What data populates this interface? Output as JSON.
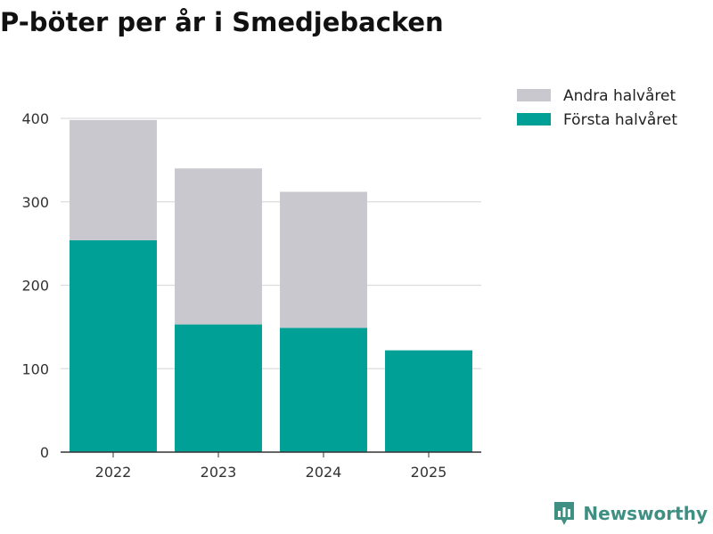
{
  "chart_data": {
    "type": "bar",
    "stacked": true,
    "title": "P-böter per år i Smedjebacken",
    "categories": [
      "2022",
      "2023",
      "2024",
      "2025"
    ],
    "series": [
      {
        "name": "Första halvåret",
        "color": "#00a096",
        "values": [
          254,
          153,
          149,
          122
        ]
      },
      {
        "name": "Andra halvåret",
        "color": "#c8c8ce",
        "values": [
          144,
          187,
          163,
          0
        ]
      }
    ],
    "legend_order": [
      "Andra halvåret",
      "Första halvåret"
    ],
    "yticks": [
      0,
      100,
      200,
      300,
      400
    ],
    "ylim": [
      0,
      400
    ],
    "xlabel": "",
    "ylabel": "",
    "grid": true,
    "legend_position": "top-right"
  },
  "brand": {
    "name": "Newsworthy",
    "color": "#3f8f83"
  }
}
